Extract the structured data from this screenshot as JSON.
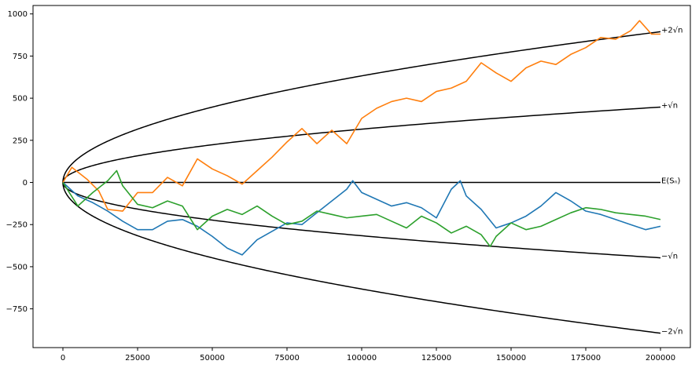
{
  "chart_data": {
    "type": "line",
    "title": "",
    "xlabel": "",
    "ylabel": "",
    "xlim": [
      -10000,
      210000
    ],
    "ylim": [
      -980,
      1050
    ],
    "grid": false,
    "x_ticks": [
      0,
      25000,
      50000,
      75000,
      100000,
      125000,
      150000,
      175000,
      200000
    ],
    "y_ticks": [
      -750,
      -500,
      -250,
      0,
      250,
      500,
      750,
      1000
    ],
    "x_tick_labels": [
      "0",
      "25000",
      "50000",
      "75000",
      "100000",
      "125000",
      "150000",
      "175000",
      "200000"
    ],
    "y_tick_labels": [
      "−750",
      "−500",
      "−250",
      "0",
      "250",
      "500",
      "750",
      "1000"
    ],
    "reference_curves": [
      {
        "label": "+2√n",
        "coef": 2,
        "color": "#000000"
      },
      {
        "label": "+√n",
        "coef": 1,
        "color": "#000000"
      },
      {
        "label": "E(Sₙ)",
        "coef": 0,
        "color": "#000000"
      },
      {
        "label": "−√n",
        "coef": -1,
        "color": "#000000"
      },
      {
        "label": "−2√n",
        "coef": -2,
        "color": "#000000"
      }
    ],
    "series": [
      {
        "color": "#1f77b4",
        "x": [
          0,
          5000,
          10000,
          15000,
          20000,
          25000,
          30000,
          35000,
          40000,
          45000,
          50000,
          55000,
          60000,
          65000,
          70000,
          75000,
          80000,
          85000,
          90000,
          95000,
          97000,
          100000,
          105000,
          110000,
          115000,
          120000,
          125000,
          130000,
          133000,
          135000,
          140000,
          145000,
          150000,
          155000,
          160000,
          165000,
          170000,
          175000,
          180000,
          185000,
          190000,
          195000,
          200000
        ],
        "y": [
          0,
          -80,
          -120,
          -170,
          -230,
          -280,
          -280,
          -230,
          -220,
          -260,
          -320,
          -390,
          -430,
          -340,
          -290,
          -240,
          -250,
          -180,
          -110,
          -40,
          10,
          -60,
          -100,
          -140,
          -120,
          -150,
          -210,
          -40,
          10,
          -80,
          -160,
          -270,
          -240,
          -200,
          -140,
          -60,
          -110,
          -170,
          -190,
          -220,
          -250,
          -280,
          -260
        ]
      },
      {
        "color": "#ff7f0e",
        "x": [
          0,
          3000,
          8000,
          12000,
          15000,
          20000,
          25000,
          30000,
          35000,
          40000,
          45000,
          50000,
          55000,
          60000,
          65000,
          70000,
          75000,
          80000,
          85000,
          90000,
          95000,
          100000,
          105000,
          110000,
          115000,
          120000,
          125000,
          130000,
          135000,
          140000,
          145000,
          150000,
          155000,
          160000,
          165000,
          170000,
          175000,
          180000,
          185000,
          190000,
          193000,
          197000,
          200000
        ],
        "y": [
          0,
          90,
          20,
          -50,
          -160,
          -170,
          -60,
          -60,
          30,
          -20,
          140,
          80,
          40,
          -10,
          70,
          150,
          240,
          320,
          230,
          310,
          230,
          380,
          440,
          480,
          500,
          480,
          540,
          560,
          600,
          710,
          650,
          600,
          680,
          720,
          700,
          760,
          800,
          860,
          850,
          900,
          960,
          880,
          880
        ]
      },
      {
        "color": "#2ca02c",
        "x": [
          0,
          5000,
          10000,
          15000,
          18000,
          20000,
          25000,
          30000,
          35000,
          40000,
          45000,
          50000,
          55000,
          60000,
          65000,
          70000,
          75000,
          80000,
          85000,
          90000,
          95000,
          100000,
          105000,
          110000,
          115000,
          120000,
          125000,
          130000,
          135000,
          140000,
          143000,
          145000,
          150000,
          155000,
          160000,
          165000,
          170000,
          175000,
          180000,
          185000,
          190000,
          195000,
          200000
        ],
        "y": [
          0,
          -140,
          -60,
          10,
          70,
          -20,
          -130,
          -150,
          -110,
          -140,
          -280,
          -200,
          -160,
          -190,
          -140,
          -200,
          -250,
          -230,
          -170,
          -190,
          -210,
          -200,
          -190,
          -230,
          -270,
          -200,
          -240,
          -300,
          -260,
          -310,
          -380,
          -320,
          -240,
          -280,
          -260,
          -220,
          -180,
          -150,
          -160,
          -180,
          -190,
          -200,
          -220
        ]
      }
    ]
  }
}
